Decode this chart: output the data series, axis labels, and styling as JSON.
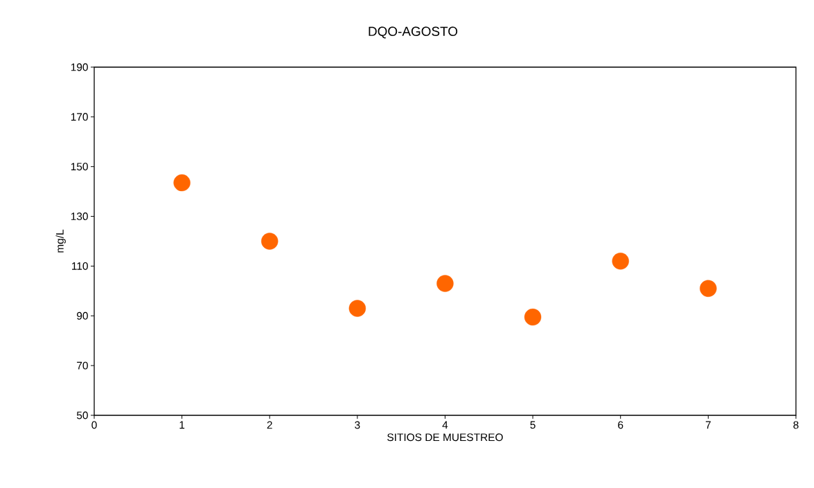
{
  "chart_data": {
    "type": "scatter",
    "title": "DQO-AGOSTO",
    "xlabel": "SITIOS DE MUESTREO",
    "ylabel": "mg/L",
    "x": [
      1,
      2,
      3,
      4,
      5,
      6,
      7
    ],
    "values": [
      143.5,
      120,
      93,
      103,
      89.5,
      112,
      101
    ],
    "color": "#ff6600",
    "marker": "circle",
    "xlim": [
      0,
      8
    ],
    "xticks": [
      0,
      1,
      2,
      3,
      4,
      5,
      6,
      7,
      8
    ],
    "ylim": [
      50,
      190
    ],
    "yticks": [
      50,
      70,
      90,
      110,
      130,
      150,
      170,
      190
    ],
    "grid": false
  }
}
